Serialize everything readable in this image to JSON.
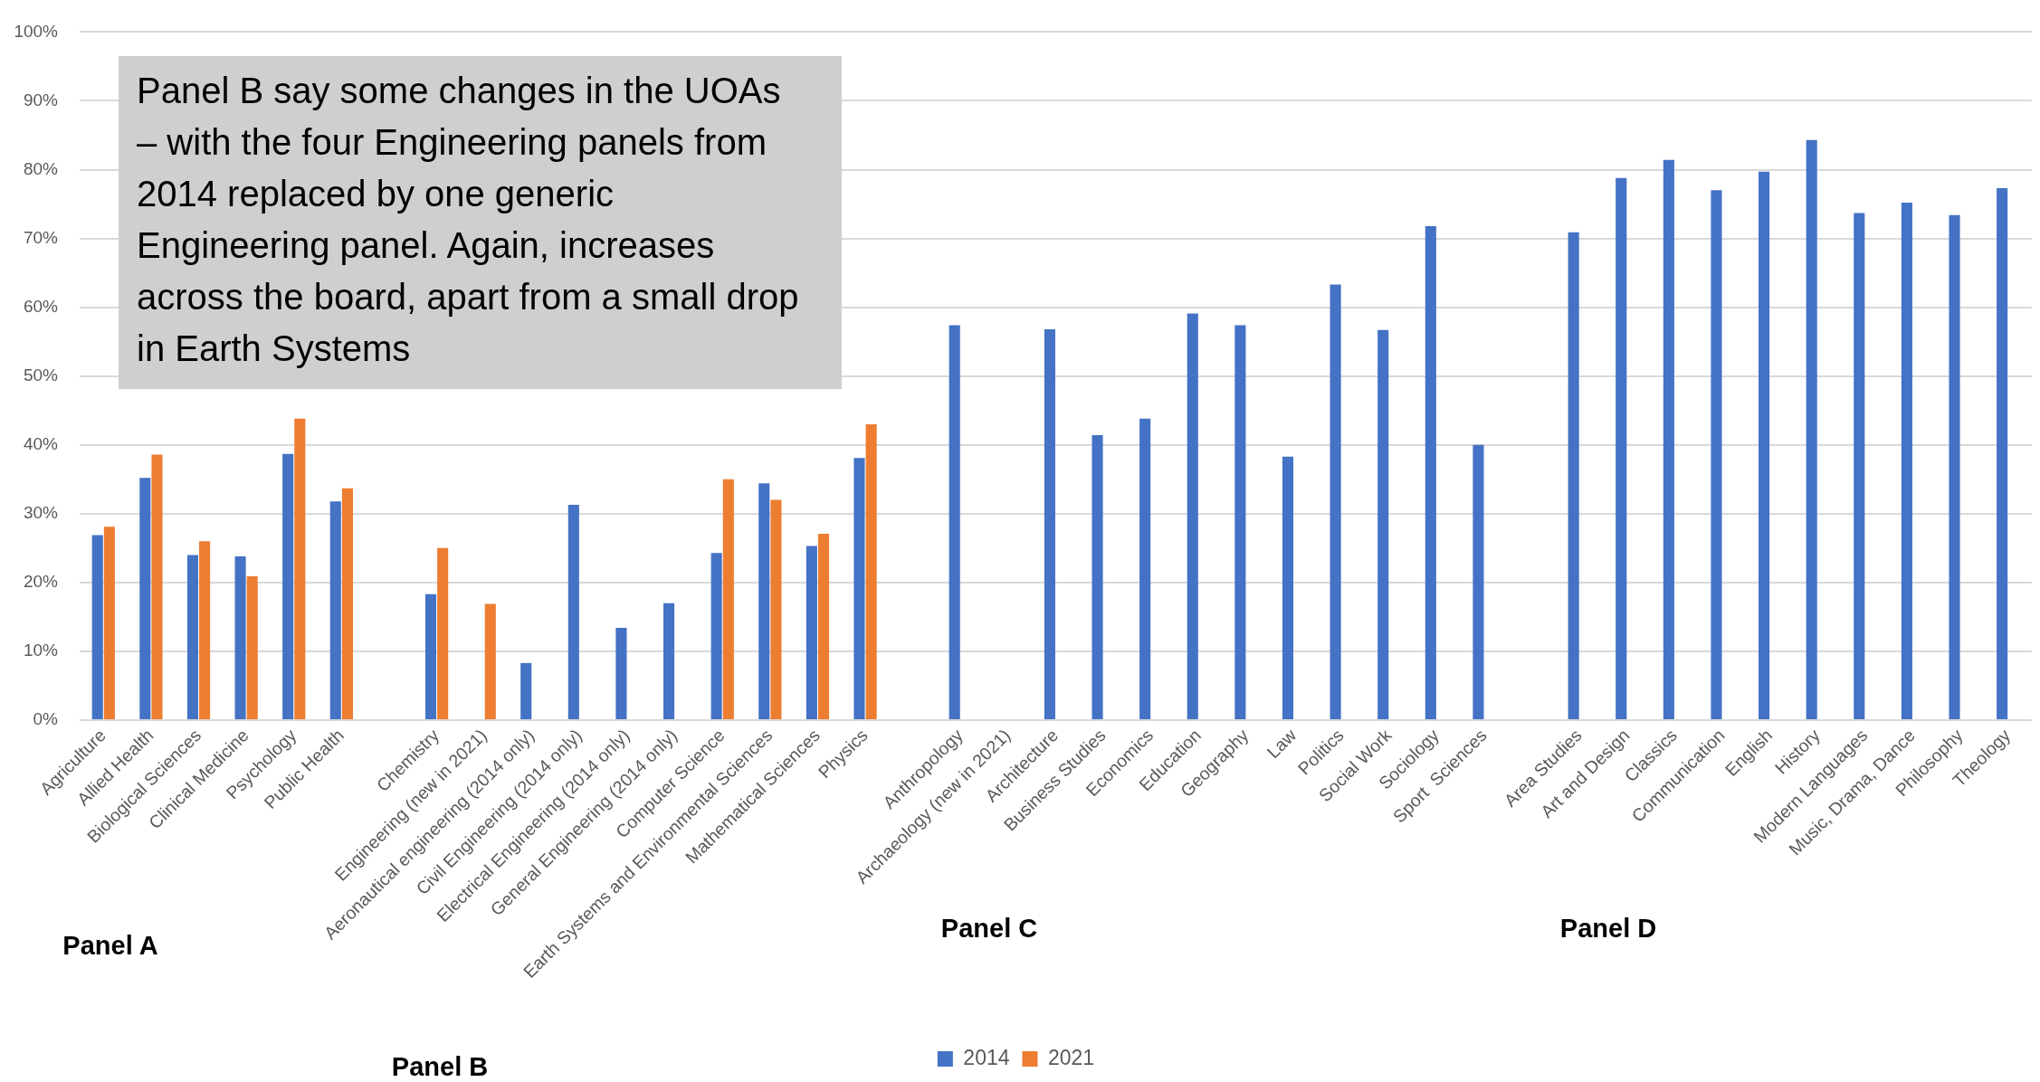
{
  "chart_data": {
    "type": "bar",
    "categories": [
      "Agriculture",
      "Allied Health",
      "Biological Sciences",
      "Clinical Medicine",
      "Psychology",
      "Public Health",
      null,
      "Chemistry",
      "Engineering (new in 2021)",
      "Aeronautical engineering (2014 only)",
      "Civil Engineering (2014 only)",
      "Electrical Engineering (2014 only)",
      "General Engineering (2014 only)",
      "Computer Science",
      "Earth Systems and Environmental Sciences",
      "Mathematical Sciences",
      "Physics",
      null,
      "Anthropology",
      "Archaeology (new in 2021)",
      "Architecture",
      "Business Studies",
      "Economics",
      "Education",
      "Geography",
      "Law",
      "Politics",
      "Social Work",
      "Sociology",
      "Sport  Sciences",
      null,
      "Area Studies",
      "Art and Design",
      "Classics",
      "Communication",
      "English",
      "History",
      "Modern Languages",
      "Music, Drama, Dance",
      "Philosophy",
      "Theology"
    ],
    "series": [
      {
        "name": "2014",
        "color": "#4472c4",
        "values": [
          26.9,
          35.2,
          24.0,
          23.8,
          38.7,
          31.8,
          null,
          18.3,
          null,
          8.3,
          31.3,
          13.4,
          17.0,
          24.3,
          34.4,
          25.3,
          38.1,
          null,
          57.4,
          null,
          56.8,
          41.4,
          43.8,
          59.1,
          57.4,
          38.3,
          63.3,
          56.7,
          71.8,
          40.0,
          null,
          70.9,
          78.8,
          81.4,
          77.0,
          79.7,
          84.3,
          73.7,
          75.2,
          73.4,
          77.3
        ]
      },
      {
        "name": "2021",
        "color": "#ed7d31",
        "values": [
          28.1,
          38.6,
          26.0,
          20.9,
          43.8,
          33.7,
          null,
          25.0,
          16.9,
          null,
          null,
          null,
          null,
          35.0,
          32.0,
          27.1,
          43.0,
          null,
          null,
          null,
          null,
          null,
          null,
          null,
          null,
          null,
          null,
          null,
          null,
          null,
          null,
          null,
          null,
          null,
          null,
          null,
          null,
          null,
          null,
          null,
          null
        ]
      }
    ],
    "ylim": [
      0,
      100
    ],
    "yticks": [
      {
        "value": 0,
        "label": "0%"
      },
      {
        "value": 10,
        "label": "10%"
      },
      {
        "value": 20,
        "label": "20%"
      },
      {
        "value": 30,
        "label": "30%"
      },
      {
        "value": 40,
        "label": "40%"
      },
      {
        "value": 50,
        "label": "50%"
      },
      {
        "value": 60,
        "label": "60%"
      },
      {
        "value": 70,
        "label": "70%"
      },
      {
        "value": 80,
        "label": "80%"
      },
      {
        "value": 90,
        "label": "90%"
      },
      {
        "value": 100,
        "label": "100%"
      }
    ],
    "grid": "y",
    "legend": "bottom",
    "annotations": [
      "Panel B say some changes in the UOAs – with the four Engineering panels from 2014 replaced by one generic Engineering panel. Again, increases across the board, apart from a small drop in Earth Systems",
      "Panel A",
      "Panel B",
      "Panel C",
      "Panel D"
    ]
  }
}
